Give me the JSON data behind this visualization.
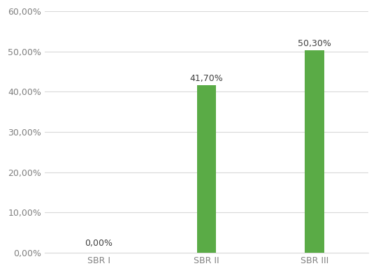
{
  "categories": [
    "SBR I",
    "SBR II",
    "SBR III"
  ],
  "values": [
    0.0,
    41.7,
    50.3
  ],
  "labels": [
    "0,00%",
    "41,70%",
    "50,30%"
  ],
  "bar_color": "#5aab46",
  "ylim": [
    0,
    60
  ],
  "yticks": [
    0,
    10,
    20,
    30,
    40,
    50,
    60
  ],
  "ytick_labels": [
    "0,00%",
    "10,00%",
    "20,00%",
    "30,00%",
    "40,00%",
    "50,00%",
    "60,00%"
  ],
  "background_color": "#ffffff",
  "grid_color": "#d9d9d9",
  "label_fontsize": 9,
  "tick_fontsize": 9,
  "bar_width": 0.18,
  "figsize": [
    5.38,
    3.91
  ],
  "dpi": 100
}
